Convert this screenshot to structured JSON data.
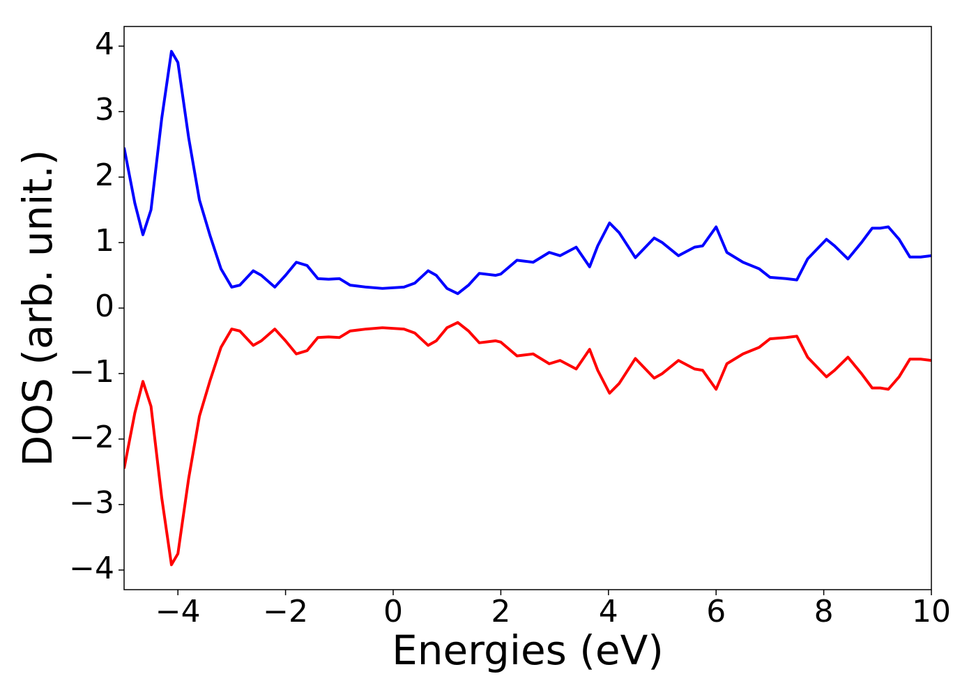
{
  "chart_data": {
    "type": "line",
    "xlabel": "Energies (eV)",
    "ylabel": "DOS (arb. unit.)",
    "x": [
      -5,
      -4.8,
      -4.65,
      -4.5,
      -4.3,
      -4.12,
      -4.0,
      -3.8,
      -3.6,
      -3.4,
      -3.2,
      -3.0,
      -2.85,
      -2.6,
      -2.45,
      -2.2,
      -2.0,
      -1.8,
      -1.6,
      -1.4,
      -1.2,
      -1.0,
      -0.8,
      -0.5,
      -0.2,
      0.2,
      0.4,
      0.65,
      0.8,
      1.0,
      1.2,
      1.4,
      1.6,
      1.9,
      2.0,
      2.3,
      2.6,
      2.9,
      3.1,
      3.4,
      3.65,
      3.8,
      4.02,
      4.2,
      4.5,
      4.85,
      5.0,
      5.3,
      5.6,
      5.75,
      6.0,
      6.2,
      6.5,
      6.8,
      7.0,
      7.3,
      7.5,
      7.7,
      8.05,
      8.2,
      8.45,
      8.7,
      8.9,
      9.05,
      9.2,
      9.4,
      9.6,
      9.8,
      10
    ],
    "series": [
      {
        "color": "#0000ff",
        "values": [
          2.45,
          1.6,
          1.12,
          1.5,
          2.9,
          3.92,
          3.75,
          2.6,
          1.65,
          1.1,
          0.6,
          0.32,
          0.35,
          0.57,
          0.5,
          0.32,
          0.5,
          0.7,
          0.65,
          0.45,
          0.44,
          0.45,
          0.35,
          0.32,
          0.3,
          0.32,
          0.38,
          0.57,
          0.5,
          0.3,
          0.22,
          0.35,
          0.53,
          0.5,
          0.52,
          0.73,
          0.7,
          0.85,
          0.8,
          0.93,
          0.63,
          0.95,
          1.3,
          1.15,
          0.77,
          1.07,
          1.0,
          0.8,
          0.93,
          0.95,
          1.24,
          0.85,
          0.7,
          0.6,
          0.47,
          0.45,
          0.43,
          0.75,
          1.05,
          0.95,
          0.75,
          1.0,
          1.22,
          1.22,
          1.24,
          1.05,
          0.78,
          0.78,
          0.8
        ]
      },
      {
        "color": "#ff0000",
        "values": [
          -2.45,
          -1.6,
          -1.12,
          -1.5,
          -2.9,
          -3.92,
          -3.75,
          -2.6,
          -1.65,
          -1.1,
          -0.6,
          -0.32,
          -0.35,
          -0.57,
          -0.5,
          -0.32,
          -0.5,
          -0.7,
          -0.65,
          -0.45,
          -0.44,
          -0.45,
          -0.35,
          -0.32,
          -0.3,
          -0.32,
          -0.38,
          -0.57,
          -0.5,
          -0.3,
          -0.22,
          -0.35,
          -0.53,
          -0.5,
          -0.52,
          -0.73,
          -0.7,
          -0.85,
          -0.8,
          -0.93,
          -0.63,
          -0.95,
          -1.3,
          -1.15,
          -0.77,
          -1.07,
          -1.0,
          -0.8,
          -0.93,
          -0.95,
          -1.24,
          -0.85,
          -0.7,
          -0.6,
          -0.47,
          -0.45,
          -0.43,
          -0.75,
          -1.05,
          -0.95,
          -0.75,
          -1.0,
          -1.22,
          -1.22,
          -1.24,
          -1.05,
          -0.78,
          -0.78,
          -0.8
        ]
      }
    ],
    "xlim": [
      -5,
      10
    ],
    "xticks": [
      {
        "value": -4,
        "label": "−4"
      },
      {
        "value": -2,
        "label": "−2"
      },
      0,
      2,
      4,
      6,
      8,
      10
    ],
    "ylim": [
      -4.3,
      4.3
    ],
    "yticks": [
      {
        "value": -4,
        "label": "−4"
      },
      {
        "value": -3,
        "label": "−3"
      },
      {
        "value": -2,
        "label": "−2"
      },
      {
        "value": -1,
        "label": "−1"
      },
      0,
      1,
      2,
      3,
      4
    ],
    "grid": false
  }
}
